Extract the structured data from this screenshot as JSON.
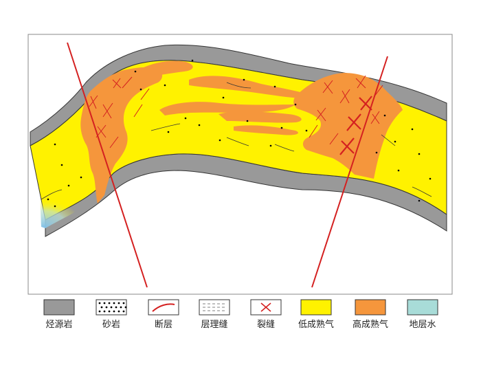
{
  "legend": [
    {
      "key": "hydrocarbon-source-rock",
      "label": "烃源岩",
      "swatch": "source-rock",
      "color": "#999999"
    },
    {
      "key": "sandstone",
      "label": "砂岩",
      "swatch": "dots",
      "color": "#ffffff"
    },
    {
      "key": "fault",
      "label": "断层",
      "swatch": "fault",
      "color": "#d42020"
    },
    {
      "key": "bedding-fracture",
      "label": "层理缝",
      "swatch": "dashes",
      "color": "#ffffff"
    },
    {
      "key": "fracture",
      "label": "裂缝",
      "swatch": "cross",
      "color": "#ffffff"
    },
    {
      "key": "low-maturity-gas",
      "label": "低成熟气",
      "swatch": "fill",
      "color": "#fff200"
    },
    {
      "key": "high-maturity-gas",
      "label": "高成熟气",
      "swatch": "fill",
      "color": "#f5963c"
    },
    {
      "key": "formation-water",
      "label": "地层水",
      "swatch": "fill",
      "color": "#a8dcd8"
    }
  ],
  "colors": {
    "source_rock": "#999999",
    "low_maturity_gas": "#fff200",
    "high_maturity_gas": "#f5963c",
    "formation_water": "#a8dcd8",
    "fault": "#d42020"
  }
}
